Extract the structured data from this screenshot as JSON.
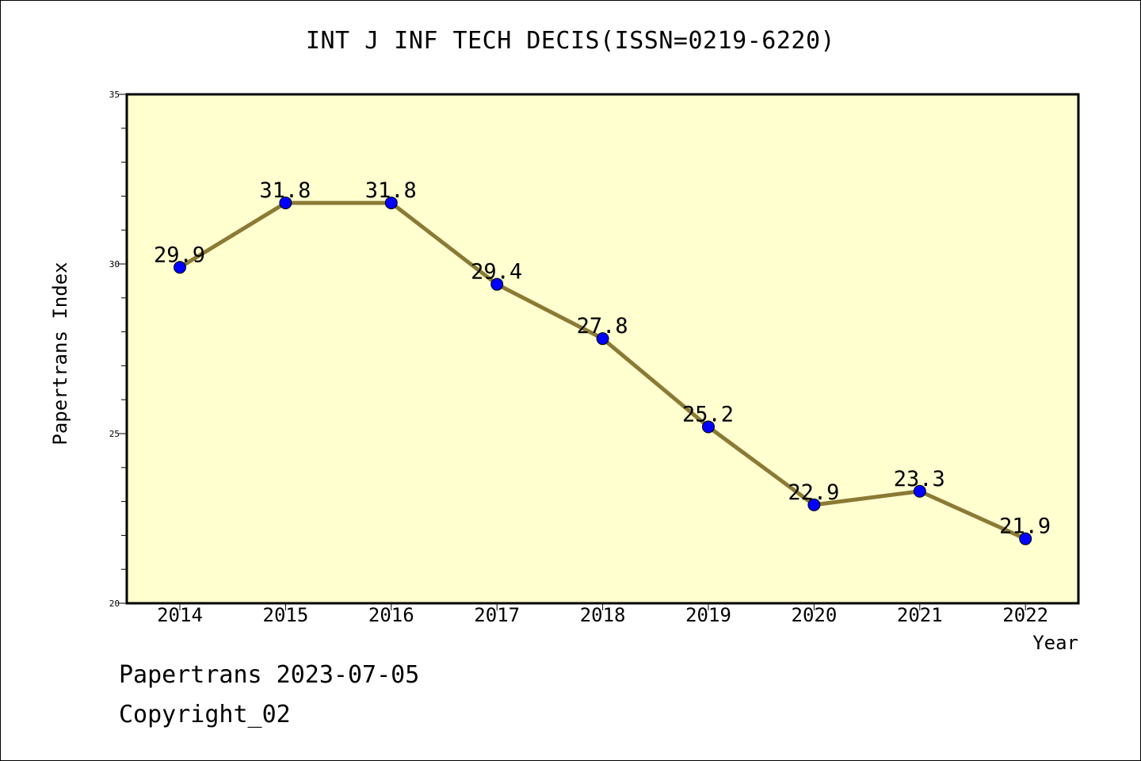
{
  "title": "INT J INF TECH DECIS(ISSN=0219-6220)",
  "footer": {
    "line1": "Papertrans 2023-07-05",
    "line2": "Copyright_02"
  },
  "colors": {
    "plot_background": "#ffffcf",
    "line": "#8b7a35",
    "marker": "#0000ff"
  },
  "chart_data": {
    "type": "line",
    "x": [
      "2014",
      "2015",
      "2016",
      "2017",
      "2018",
      "2019",
      "2020",
      "2021",
      "2022"
    ],
    "series": [
      {
        "values": [
          29.9,
          31.8,
          31.8,
          29.4,
          27.8,
          25.2,
          22.9,
          23.3,
          21.9
        ],
        "labels": [
          "29.9",
          "31.8",
          "31.8",
          "29.4",
          "27.8",
          "25.2",
          "22.9",
          "23.3",
          "21.9"
        ]
      }
    ],
    "xlabel": "Year",
    "ylabel": "Papertrans Index",
    "ylim": [
      20,
      35
    ],
    "yticks": [
      "20",
      "25",
      "30",
      "35"
    ],
    "grid": false
  }
}
